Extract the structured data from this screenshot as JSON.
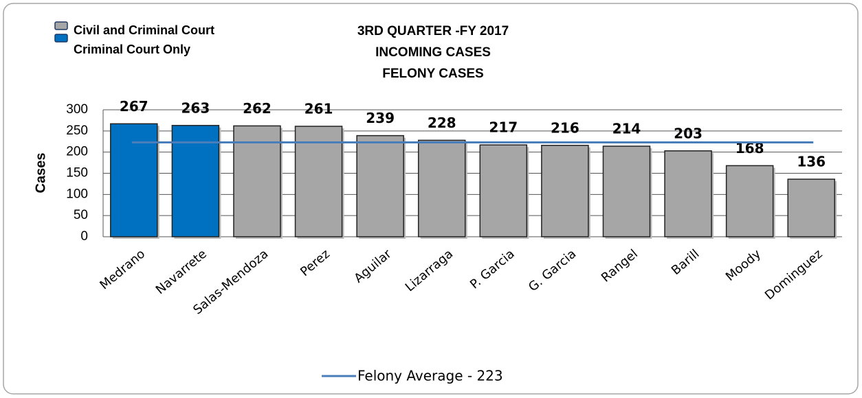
{
  "chart_data": {
    "type": "bar",
    "title": [
      "3RD QUARTER -FY 2017",
      "INCOMING CASES",
      "FELONY CASES"
    ],
    "y_label": "Cases",
    "categories": [
      "Medrano",
      "Navarrete",
      "Salas-Mendoza",
      "Perez",
      "Aguilar",
      "Lizarraga",
      "P. Garcia",
      "G. Garcia",
      "Rangel",
      "Barill",
      "Moody",
      "Dominguez"
    ],
    "values": [
      267,
      263,
      262,
      261,
      239,
      228,
      217,
      216,
      214,
      203,
      168,
      136
    ],
    "colors": [
      "#0070c0",
      "#0070c0",
      "#a6a6a6",
      "#a6a6a6",
      "#a6a6a6",
      "#a6a6a6",
      "#a6a6a6",
      "#a6a6a6",
      "#a6a6a6",
      "#a6a6a6",
      "#a6a6a6",
      "#a6a6a6"
    ],
    "legend": [
      {
        "name": "Civil and Criminal Court",
        "color": "#a6a6a6"
      },
      {
        "name": "Criminal Court Only",
        "color": "#0070c0"
      }
    ],
    "average": {
      "name": "Felony Average - 223",
      "value": 223,
      "color": "#4a7ebb"
    },
    "ylim": [
      0,
      300
    ],
    "yticks": [
      0,
      50,
      100,
      150,
      200,
      250,
      300
    ],
    "grid": true
  }
}
